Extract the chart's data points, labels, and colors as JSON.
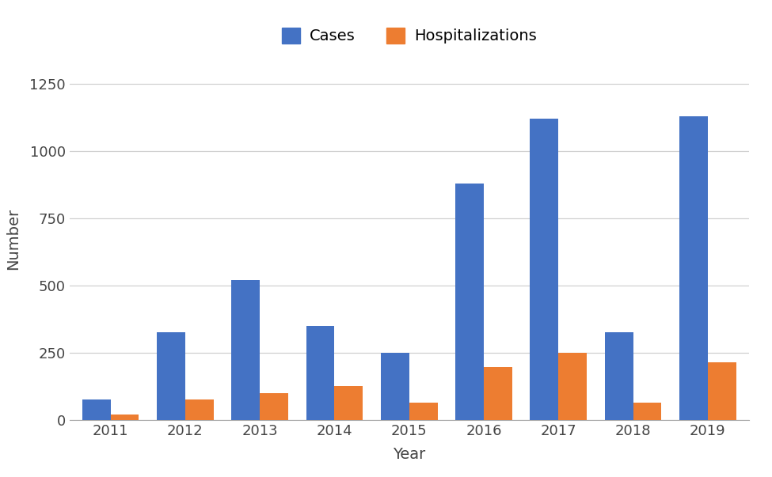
{
  "years": [
    "2011",
    "2012",
    "2013",
    "2014",
    "2015",
    "2016",
    "2017",
    "2018",
    "2019"
  ],
  "cases": [
    75,
    325,
    520,
    350,
    250,
    880,
    1120,
    325,
    1130
  ],
  "hospitalizations": [
    20,
    75,
    100,
    125,
    65,
    195,
    250,
    65,
    215
  ],
  "cases_color": "#4472C4",
  "hosp_color": "#ED7D31",
  "ylabel": "Number",
  "xlabel": "Year",
  "ylim": [
    0,
    1350
  ],
  "yticks": [
    0,
    250,
    500,
    750,
    1000,
    1250
  ],
  "legend_cases": "Cases",
  "legend_hosp": "Hospitalizations",
  "background_color": "#ffffff",
  "grid_color": "#d0d0d0",
  "bar_width": 0.38,
  "tick_fontsize": 13,
  "label_fontsize": 14,
  "legend_fontsize": 14
}
